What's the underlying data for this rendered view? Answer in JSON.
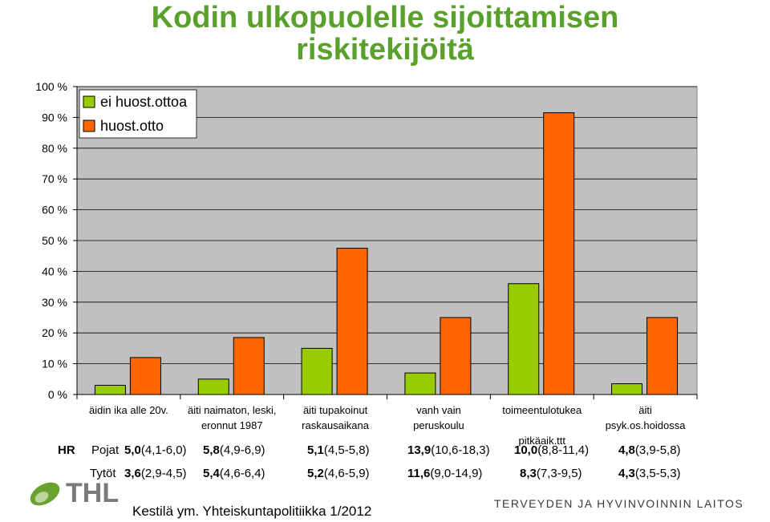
{
  "title_line1": "Kodin ulkopuolelle sijoittamisen",
  "title_line2": "riskitekijöitä",
  "chart_data": {
    "type": "bar",
    "categories": [
      [
        "äidin ika alle 20v."
      ],
      [
        "äiti naimaton, leski,",
        "eronnut 1987"
      ],
      [
        "äiti tupakoinut",
        "raskausaikana"
      ],
      [
        "vanh vain",
        "peruskoulu"
      ],
      [
        "toimeentulotukea",
        "",
        "pitkäaik.ttt"
      ],
      [
        "äiti",
        "psyk.os.hoidossa"
      ]
    ],
    "series": [
      {
        "name": "ei huost.ottoa",
        "color": "#99cc00",
        "values": [
          3,
          5,
          15,
          7,
          36,
          3.5
        ]
      },
      {
        "name": "huost.otto",
        "color": "#ff6600",
        "values": [
          12,
          18.5,
          47.5,
          25,
          91.5,
          25
        ]
      }
    ],
    "ylim": [
      0,
      100
    ],
    "yticks": [
      "0 %",
      "10 %",
      "20 %",
      "30 %",
      "40 %",
      "50 %",
      "60 %",
      "70 %",
      "80 %",
      "90 %",
      "100 %"
    ],
    "grid": true,
    "legend": "top-left"
  },
  "hr_table": {
    "label": "HR",
    "rows": [
      {
        "name": "Pojat",
        "cells": [
          {
            "v": "5,0",
            "ci": "(4,1-6,0)"
          },
          {
            "v": "5,8",
            "ci": "(4,9-6,9)"
          },
          {
            "v": "5,1",
            "ci": "(4,5-5,8)"
          },
          {
            "v": "13,9",
            "ci": "(10,6-18,3)"
          },
          {
            "v": "10,0",
            "ci": "(8,8-11,4)"
          },
          {
            "v": "4,8",
            "ci": "(3,9-5,8)"
          }
        ]
      },
      {
        "name": "Tytöt",
        "cells": [
          {
            "v": "3,6",
            "ci": "(2,9-4,5)"
          },
          {
            "v": "5,4",
            "ci": "(4,6-6,4)"
          },
          {
            "v": "5,2",
            "ci": "(4,6-5,9)"
          },
          {
            "v": "11,6",
            "ci": "(9,0-14,9)"
          },
          {
            "v": "8,3",
            "ci": "(7,3-9,5)"
          },
          {
            "v": "4,3",
            "ci": "(3,5-5,3)"
          }
        ]
      }
    ]
  },
  "logo_text": "THL",
  "source": "Kestilä ym. Yhteiskuntapolitiikka 1/2012",
  "institute": "TERVEYDEN JA HYVINVOINNIN LAITOS"
}
